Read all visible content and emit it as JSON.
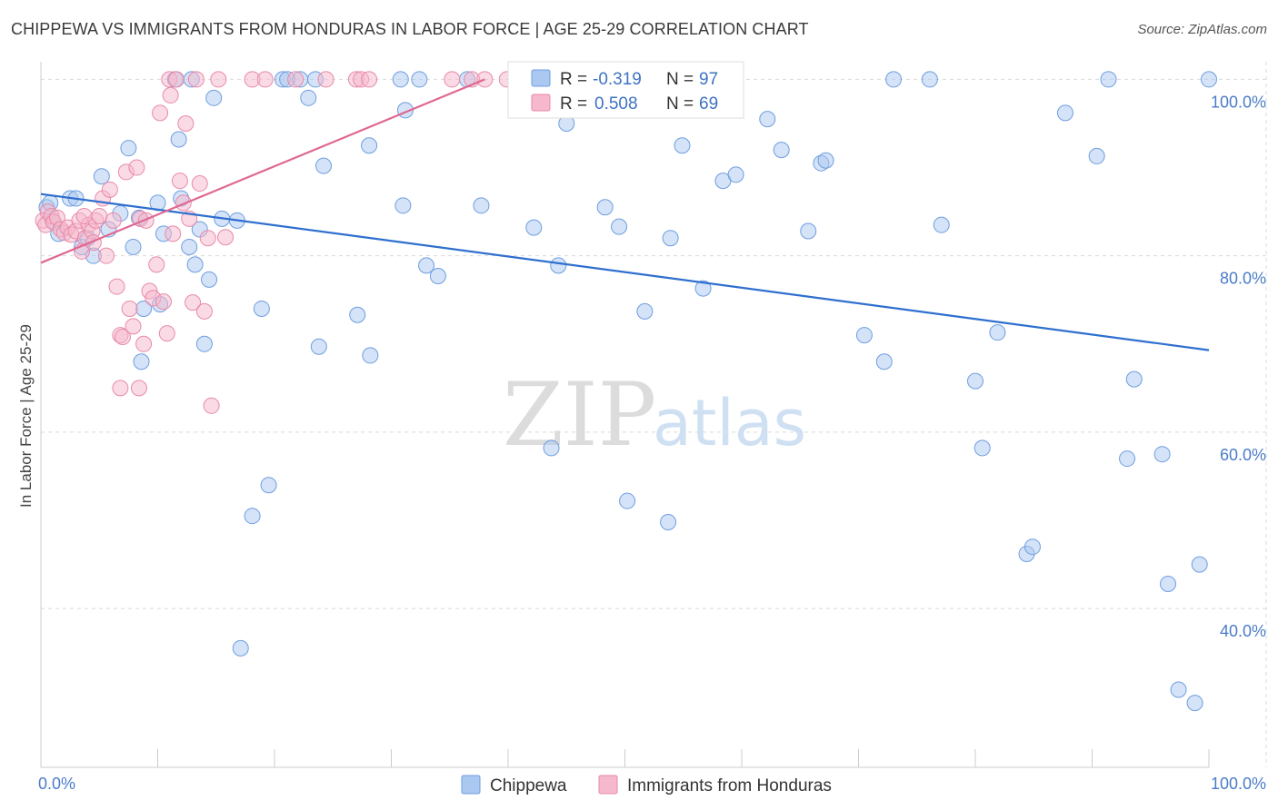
{
  "title": "CHIPPEWA VS IMMIGRANTS FROM HONDURAS IN LABOR FORCE | AGE 25-29 CORRELATION CHART",
  "source": "Source: ZipAtlas.com",
  "watermark": {
    "zip": "ZIP",
    "atlas": "atlas"
  },
  "colors": {
    "chippewa_fill": "#aac8f0",
    "chippewa_stroke": "#6f9ee0",
    "chippewa_line": "#2e6fcf",
    "honduras_fill": "#f6b8cc",
    "honduras_stroke": "#e88aa8",
    "honduras_line": "#e06892",
    "grid": "#d9d9d9",
    "tick_text": "#4a7cc9"
  },
  "legend": {
    "rows": [
      {
        "r_label": "R =",
        "r_value": "-0.319",
        "n_label": "N =",
        "n_value": "97"
      },
      {
        "r_label": "R =",
        "r_value": "0.508",
        "n_label": "N =",
        "n_value": "69"
      }
    ]
  },
  "bottom_legend": [
    "Chippewa",
    "Immigrants from Honduras"
  ],
  "chart_data": {
    "type": "scatter",
    "title": "CHIPPEWA VS IMMIGRANTS FROM HONDURAS IN LABOR FORCE | AGE 25-29 CORRELATION CHART",
    "xlabel": "",
    "ylabel": "In Labor Force | Age 25-29",
    "xlim": [
      0,
      100
    ],
    "ylim": [
      22,
      102
    ],
    "x_tick_labels": [
      "0.0%",
      "100.0%"
    ],
    "y_ticks": [
      40,
      60,
      80,
      100
    ],
    "y_tick_labels": [
      "40.0%",
      "60.0%",
      "80.0%",
      "100.0%"
    ],
    "grid": true,
    "legend_position": "top-center",
    "series": [
      {
        "name": "Chippewa",
        "r": -0.319,
        "n": 97,
        "trend": {
          "x": [
            0,
            100
          ],
          "y": [
            87.0,
            69.3
          ]
        },
        "points": [
          [
            0.5,
            85.5
          ],
          [
            0.8,
            86.0
          ],
          [
            1.0,
            84.0
          ],
          [
            1.5,
            82.5
          ],
          [
            2.5,
            86.5
          ],
          [
            3.0,
            86.5
          ],
          [
            3.5,
            81.0
          ],
          [
            4.0,
            82.0
          ],
          [
            4.5,
            80.0
          ],
          [
            5.2,
            89.0
          ],
          [
            5.8,
            83.0
          ],
          [
            6.8,
            84.8
          ],
          [
            7.5,
            92.2
          ],
          [
            7.9,
            81.0
          ],
          [
            8.4,
            84.3
          ],
          [
            8.6,
            68.0
          ],
          [
            8.8,
            74.0
          ],
          [
            10.0,
            86.0
          ],
          [
            10.2,
            74.5
          ],
          [
            10.5,
            82.5
          ],
          [
            11.5,
            100.0
          ],
          [
            11.8,
            93.2
          ],
          [
            12.0,
            86.5
          ],
          [
            12.7,
            81.0
          ],
          [
            12.9,
            100.0
          ],
          [
            13.2,
            79.0
          ],
          [
            13.6,
            83.0
          ],
          [
            14.0,
            70.0
          ],
          [
            14.4,
            77.3
          ],
          [
            14.8,
            97.9
          ],
          [
            15.5,
            84.2
          ],
          [
            16.8,
            84.0
          ],
          [
            17.1,
            35.5
          ],
          [
            18.1,
            50.5
          ],
          [
            18.9,
            74.0
          ],
          [
            19.5,
            54.0
          ],
          [
            20.7,
            100.0
          ],
          [
            21.1,
            100.0
          ],
          [
            22.2,
            100.0
          ],
          [
            22.9,
            97.9
          ],
          [
            23.5,
            100.0
          ],
          [
            23.8,
            69.7
          ],
          [
            24.2,
            90.2
          ],
          [
            27.1,
            73.3
          ],
          [
            28.1,
            92.5
          ],
          [
            28.2,
            68.7
          ],
          [
            30.8,
            100.0
          ],
          [
            31.0,
            85.7
          ],
          [
            31.2,
            96.5
          ],
          [
            32.4,
            100.0
          ],
          [
            33.0,
            78.9
          ],
          [
            34.0,
            77.7
          ],
          [
            36.5,
            100.0
          ],
          [
            37.7,
            85.7
          ],
          [
            42.2,
            83.2
          ],
          [
            43.0,
            100.0
          ],
          [
            43.7,
            58.2
          ],
          [
            44.3,
            78.9
          ],
          [
            45.0,
            95.0
          ],
          [
            48.3,
            85.5
          ],
          [
            49.5,
            83.3
          ],
          [
            50.2,
            52.2
          ],
          [
            51.7,
            73.7
          ],
          [
            53.0,
            100.0
          ],
          [
            53.7,
            49.8
          ],
          [
            53.9,
            82.0
          ],
          [
            54.3,
            100.0
          ],
          [
            54.9,
            92.5
          ],
          [
            56.7,
            76.3
          ],
          [
            58.4,
            88.5
          ],
          [
            59.5,
            89.2
          ],
          [
            62.2,
            95.5
          ],
          [
            63.4,
            92.0
          ],
          [
            65.7,
            82.8
          ],
          [
            66.8,
            90.5
          ],
          [
            67.2,
            90.8
          ],
          [
            70.5,
            71.0
          ],
          [
            72.2,
            68.0
          ],
          [
            73.0,
            100.0
          ],
          [
            76.1,
            100.0
          ],
          [
            77.1,
            83.5
          ],
          [
            80.0,
            65.8
          ],
          [
            80.6,
            58.2
          ],
          [
            81.9,
            71.3
          ],
          [
            84.4,
            46.2
          ],
          [
            84.9,
            47.0
          ],
          [
            87.7,
            96.2
          ],
          [
            90.4,
            91.3
          ],
          [
            91.4,
            100.0
          ],
          [
            93.0,
            57.0
          ],
          [
            93.6,
            66.0
          ],
          [
            96.0,
            57.5
          ],
          [
            96.5,
            42.8
          ],
          [
            97.4,
            30.8
          ],
          [
            98.8,
            29.3
          ],
          [
            99.2,
            45.0
          ],
          [
            100.0,
            100.0
          ]
        ]
      },
      {
        "name": "Immigrants from Honduras",
        "r": 0.508,
        "n": 69,
        "trend": {
          "x": [
            0,
            38
          ],
          "y": [
            79.2,
            100.0
          ]
        },
        "points": [
          [
            0.2,
            84.0
          ],
          [
            0.4,
            83.5
          ],
          [
            0.6,
            85.0
          ],
          [
            0.9,
            84.5
          ],
          [
            1.1,
            83.8
          ],
          [
            1.4,
            84.3
          ],
          [
            1.7,
            83.0
          ],
          [
            2.0,
            82.6
          ],
          [
            2.3,
            83.2
          ],
          [
            2.6,
            82.4
          ],
          [
            3.0,
            82.8
          ],
          [
            3.3,
            84.0
          ],
          [
            3.5,
            80.5
          ],
          [
            3.8,
            82.0
          ],
          [
            4.1,
            83.5
          ],
          [
            4.4,
            82.8
          ],
          [
            4.7,
            84.0
          ],
          [
            5.0,
            84.5
          ],
          [
            5.3,
            86.5
          ],
          [
            5.6,
            80.0
          ],
          [
            5.9,
            87.5
          ],
          [
            6.2,
            84.0
          ],
          [
            6.5,
            76.5
          ],
          [
            6.8,
            71.0
          ],
          [
            7.0,
            70.8
          ],
          [
            7.3,
            89.5
          ],
          [
            7.6,
            74.0
          ],
          [
            7.9,
            72.0
          ],
          [
            8.2,
            90.0
          ],
          [
            8.5,
            84.2
          ],
          [
            8.8,
            70.0
          ],
          [
            9.0,
            84.0
          ],
          [
            9.3,
            76.0
          ],
          [
            9.6,
            75.2
          ],
          [
            9.9,
            79.0
          ],
          [
            10.2,
            96.2
          ],
          [
            10.5,
            74.8
          ],
          [
            10.8,
            71.2
          ],
          [
            11.0,
            100.0
          ],
          [
            11.1,
            98.2
          ],
          [
            11.3,
            82.5
          ],
          [
            11.6,
            100.0
          ],
          [
            11.9,
            88.5
          ],
          [
            12.2,
            86.0
          ],
          [
            12.4,
            95.0
          ],
          [
            12.7,
            84.2
          ],
          [
            13.0,
            74.7
          ],
          [
            13.3,
            100.0
          ],
          [
            13.6,
            88.2
          ],
          [
            14.0,
            73.7
          ],
          [
            14.3,
            82.0
          ],
          [
            14.6,
            63.0
          ],
          [
            15.2,
            100.0
          ],
          [
            15.8,
            82.1
          ],
          [
            18.1,
            100.0
          ],
          [
            19.2,
            100.0
          ],
          [
            21.8,
            100.0
          ],
          [
            24.4,
            100.0
          ],
          [
            27.0,
            100.0
          ],
          [
            27.4,
            100.0
          ],
          [
            28.1,
            100.0
          ],
          [
            35.2,
            100.0
          ],
          [
            36.9,
            100.0
          ],
          [
            38.0,
            100.0
          ],
          [
            39.9,
            100.0
          ],
          [
            6.8,
            65.0
          ],
          [
            8.4,
            65.0
          ],
          [
            3.7,
            84.5
          ],
          [
            4.5,
            81.5
          ]
        ]
      }
    ]
  }
}
